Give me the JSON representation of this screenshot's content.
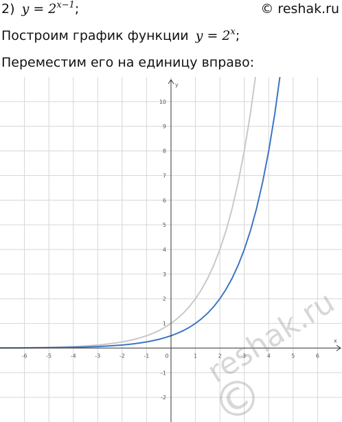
{
  "header": {
    "task": "2)",
    "formula_base": "y = 2",
    "formula_exponent": "x−1",
    "formula_end": ";",
    "copyright": "© reshak.ru"
  },
  "step1": {
    "text": "Построим график функции",
    "formula_base": "y = 2",
    "formula_exponent": "x",
    "formula_end": ";"
  },
  "step2": {
    "text": "Переместим его на единицу вправо:"
  },
  "watermark": {
    "symbol": "©",
    "text": "reshak.ru"
  },
  "chart_data": {
    "type": "line",
    "xlabel": "x",
    "ylabel": "y",
    "xlim": [
      -7,
      7
    ],
    "ylim": [
      -3,
      11
    ],
    "xticks": [
      -6,
      -5,
      -4,
      -3,
      -2,
      -1,
      0,
      1,
      2,
      3,
      4,
      5,
      6
    ],
    "yticks": [
      -2,
      -1,
      1,
      2,
      3,
      4,
      5,
      6,
      7,
      8,
      9,
      10
    ],
    "grid": true,
    "x": [
      -7,
      -6.75,
      -6.5,
      -6.25,
      -6,
      -5.75,
      -5.5,
      -5.25,
      -5,
      -4.75,
      -4.5,
      -4.25,
      -4,
      -3.75,
      -3.5,
      -3.25,
      -3,
      -2.75,
      -2.5,
      -2.25,
      -2,
      -1.75,
      -1.5,
      -1.25,
      -1,
      -0.75,
      -0.5,
      -0.25,
      0,
      0.25,
      0.5,
      0.75,
      1,
      1.25,
      1.5,
      1.75,
      2,
      2.25,
      2.5,
      2.75,
      3,
      3.25,
      3.5,
      3.75,
      4,
      4.25,
      4.5
    ],
    "series": [
      {
        "color": "#c8c8c8",
        "values": [
          0.0078,
          0.0093,
          0.011,
          0.0131,
          0.0156,
          0.0186,
          0.0221,
          0.0263,
          0.0313,
          0.0372,
          0.0442,
          0.0526,
          0.0625,
          0.0743,
          0.0884,
          0.1051,
          0.125,
          0.1487,
          0.1768,
          0.2102,
          0.25,
          0.2973,
          0.3536,
          0.4204,
          0.5,
          0.5946,
          0.7071,
          0.8409,
          1,
          1.1892,
          1.4142,
          1.6818,
          2,
          2.3784,
          2.8284,
          3.3636,
          4,
          4.7568,
          5.6569,
          6.7272,
          8,
          9.5137,
          11.3137,
          null,
          null,
          null,
          null
        ]
      },
      {
        "color": "#3a75c4",
        "values": [
          0.0039,
          0.0046,
          0.0055,
          0.0066,
          0.0078,
          0.0093,
          0.011,
          0.0131,
          0.0156,
          0.0186,
          0.0221,
          0.0263,
          0.0313,
          0.0372,
          0.0442,
          0.0526,
          0.0625,
          0.0743,
          0.0884,
          0.1051,
          0.125,
          0.1487,
          0.1768,
          0.2102,
          0.25,
          0.2973,
          0.3536,
          0.4204,
          0.5,
          0.5946,
          0.7071,
          0.8409,
          1,
          1.1892,
          1.4142,
          1.6818,
          2,
          2.3784,
          2.8284,
          3.3636,
          4,
          4.7568,
          5.6569,
          6.7272,
          8,
          9.5137,
          11.3137
        ]
      }
    ]
  }
}
